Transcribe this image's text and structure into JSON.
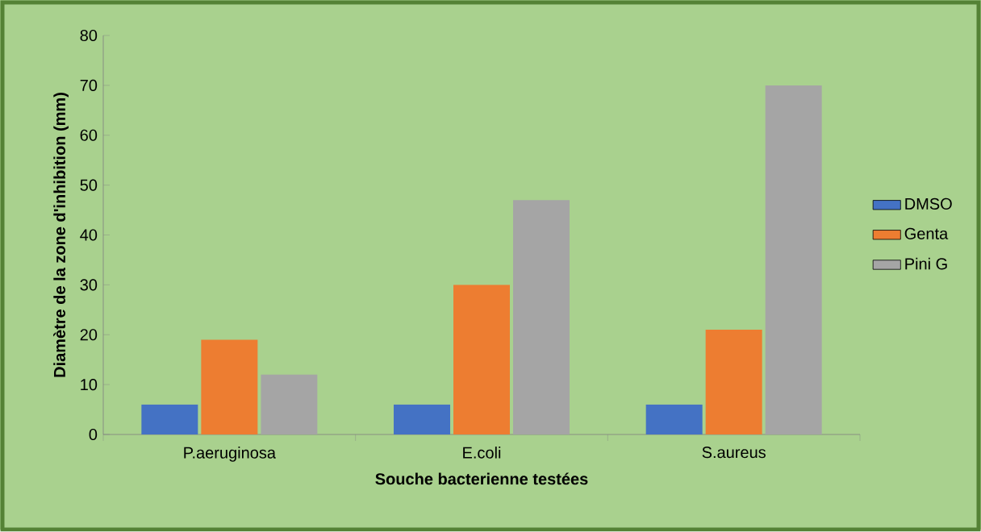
{
  "chart_data": {
    "type": "bar",
    "xlabel": "Souche bacterienne testées",
    "ylabel": "Diamètre de la zone d'inhibition (mm)",
    "categories": [
      "P.aeruginosa",
      "E.coli",
      "S.aureus"
    ],
    "series": [
      {
        "name": "DMSO",
        "color": "#4472c4",
        "values": [
          6,
          6,
          6
        ]
      },
      {
        "name": "Genta",
        "color": "#ed7d31",
        "values": [
          19,
          30,
          21
        ]
      },
      {
        "name": "Pini G",
        "color": "#a5a5a5",
        "values": [
          12,
          47,
          70
        ]
      }
    ],
    "ylim": [
      0,
      80
    ],
    "yticks": [
      0,
      10,
      20,
      30,
      40,
      50,
      60,
      70,
      80
    ],
    "grid": false,
    "legend": "right"
  }
}
